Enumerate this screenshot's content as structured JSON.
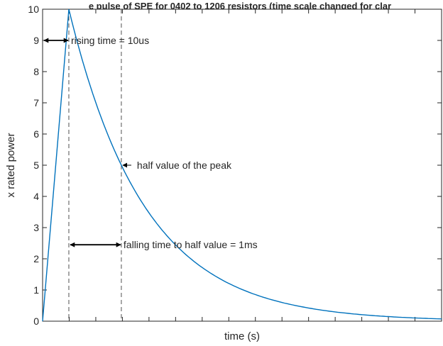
{
  "chart_data": {
    "type": "line",
    "title": "e pulse of SPE for 0402 to 1206 resistors (time scale changed for clar",
    "xlabel": "time (s)",
    "ylabel": "x rated power",
    "ylim": [
      0,
      10
    ],
    "y_ticks": [
      "0",
      "1",
      "2",
      "3",
      "4",
      "5",
      "6",
      "7",
      "8",
      "9",
      "10"
    ],
    "xlim": [
      0,
      0.0076
    ],
    "x_tick_count": 15,
    "x_tick_labels_shown": false,
    "grid": false,
    "line_color": "#0072bd",
    "series": [
      {
        "rise": {
          "t_start": 0,
          "t_peak": 0.0005,
          "peak": 10
        },
        "decay": {
          "tau": 0.001443,
          "t_end": 0.0076
        }
      }
    ],
    "reference_lines": [
      {
        "x": 0.0005,
        "style": "dashed"
      },
      {
        "x": 0.0015,
        "style": "dashed"
      }
    ],
    "annotations": [
      {
        "text": "rising time = 10us",
        "arrow": "double",
        "x1": 0,
        "x2": 0.0005,
        "y": 9
      },
      {
        "text": "half value of the peak",
        "arrow": "pointer",
        "x": 0.0015,
        "y": 5
      },
      {
        "text": "falling time to half value = 1ms",
        "arrow": "double",
        "x1": 0.0005,
        "x2": 0.0015,
        "y": 2.45
      }
    ]
  }
}
